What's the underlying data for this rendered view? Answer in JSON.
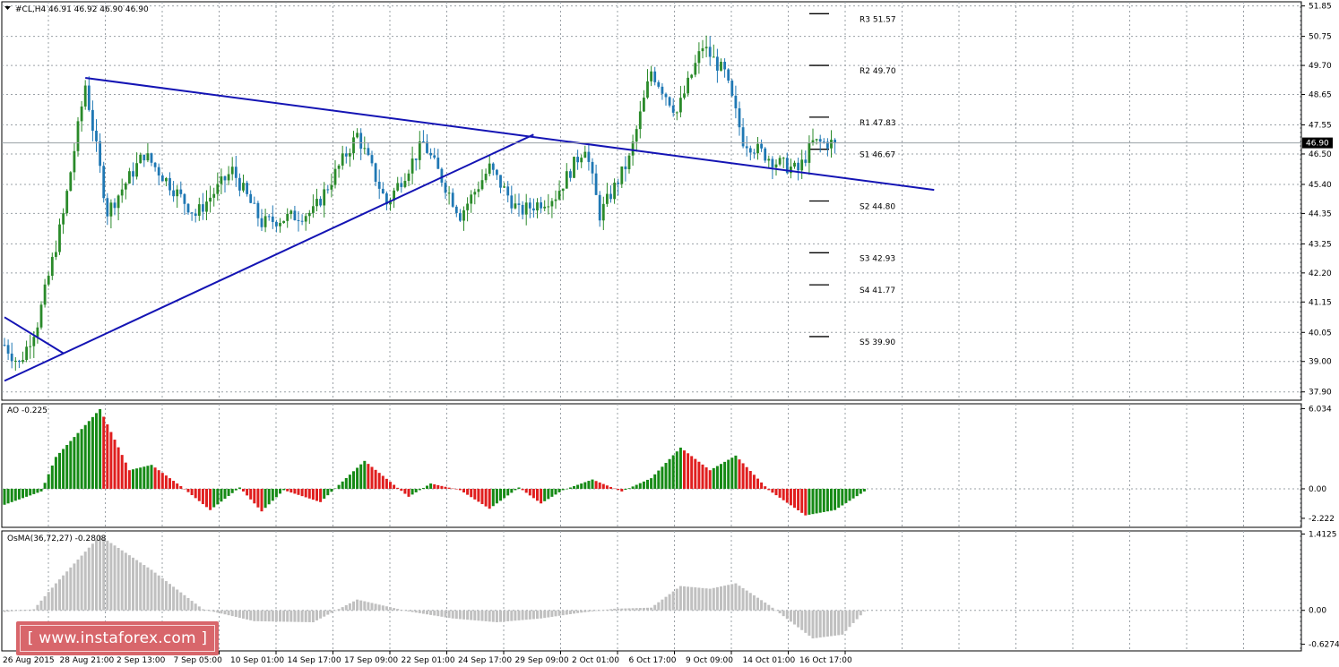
{
  "chart_data": [
    {
      "type": "candlestick",
      "title": "#CL,H4  46.91 46.92 46.90 46.90",
      "y_axis_ticks": [
        "51.85",
        "50.75",
        "49.70",
        "48.65",
        "47.55",
        "46.50",
        "45.40",
        "44.35",
        "43.25",
        "42.20",
        "41.15",
        "40.05",
        "39.00",
        "37.90"
      ],
      "ylim": [
        37.6,
        52.0
      ],
      "current_price": "46.90",
      "x_axis_labels": [
        "26 Aug 2015",
        "28 Aug 21:00",
        "2 Sep 13:00",
        "7 Sep 05:00",
        "10 Sep 01:00",
        "14 Sep 17:00",
        "17 Sep 09:00",
        "22 Sep 01:00",
        "24 Sep 17:00",
        "29 Sep 09:00",
        "2 Oct 01:00",
        "6 Oct 17:00",
        "9 Oct 09:00",
        "14 Oct 01:00",
        "16 Oct 17:00"
      ],
      "price_path_keypoints": [
        {
          "bar": 0,
          "close": 39.6
        },
        {
          "bar": 4,
          "close": 38.9
        },
        {
          "bar": 9,
          "close": 40.4
        },
        {
          "bar": 16,
          "close": 44.3
        },
        {
          "bar": 22,
          "close": 49.0
        },
        {
          "bar": 28,
          "close": 44.4
        },
        {
          "bar": 38,
          "close": 46.5
        },
        {
          "bar": 52,
          "close": 44.3
        },
        {
          "bar": 62,
          "close": 45.9
        },
        {
          "bar": 70,
          "close": 44.0
        },
        {
          "bar": 84,
          "close": 44.4
        },
        {
          "bar": 96,
          "close": 47.2
        },
        {
          "bar": 104,
          "close": 44.7
        },
        {
          "bar": 114,
          "close": 46.9
        },
        {
          "bar": 124,
          "close": 44.3
        },
        {
          "bar": 132,
          "close": 46.0
        },
        {
          "bar": 140,
          "close": 44.4
        },
        {
          "bar": 150,
          "close": 45.0
        },
        {
          "bar": 158,
          "close": 46.8
        },
        {
          "bar": 162,
          "close": 44.3
        },
        {
          "bar": 170,
          "close": 46.3
        },
        {
          "bar": 176,
          "close": 49.5
        },
        {
          "bar": 183,
          "close": 48.0
        },
        {
          "bar": 190,
          "close": 50.4
        },
        {
          "bar": 196,
          "close": 49.4
        },
        {
          "bar": 201,
          "close": 47.0
        },
        {
          "bar": 210,
          "close": 46.2
        },
        {
          "bar": 216,
          "close": 45.9
        },
        {
          "bar": 220,
          "close": 46.9
        },
        {
          "bar": 226,
          "close": 46.9
        }
      ],
      "trendlines": [
        {
          "from": {
            "bar": 22,
            "price": 49.25
          },
          "to": {
            "bar": 253,
            "price": 45.2
          }
        },
        {
          "from": {
            "bar": 0,
            "price": 38.3
          },
          "to": {
            "bar": 144,
            "price": 47.2
          }
        },
        {
          "from": {
            "bar": 0,
            "price": 40.6
          },
          "to": {
            "bar": 16,
            "price": 39.3
          }
        }
      ],
      "pivot_levels": [
        {
          "name": "R3",
          "value": 51.57,
          "label": "R3 51.57"
        },
        {
          "name": "R2",
          "value": 49.7,
          "label": "R2 49.70"
        },
        {
          "name": "R1",
          "value": 47.83,
          "label": "R1 47.83"
        },
        {
          "name": "S1",
          "value": 46.67,
          "label": "S1 46.67"
        },
        {
          "name": "S2",
          "value": 44.8,
          "label": "S2 44.80"
        },
        {
          "name": "S3",
          "value": 42.93,
          "label": "S3 42.93"
        },
        {
          "name": "S4",
          "value": 41.77,
          "label": "S4 41.77"
        },
        {
          "name": "S5",
          "value": 39.9,
          "label": "S5 39.90"
        }
      ],
      "colors": {
        "bull": "#2a8a2a",
        "bear": "#1f78b4",
        "trendline": "#1414b4",
        "grid": "#9aa0a6"
      }
    },
    {
      "type": "bar",
      "title": "AO -0.225",
      "y_axis_ticks": [
        "6.034",
        "0.00",
        "-2.222"
      ],
      "ylim": [
        -2.9,
        6.4
      ],
      "keypoints": [
        {
          "bar": 0,
          "value": -1.2
        },
        {
          "bar": 10,
          "value": -0.2
        },
        {
          "bar": 14,
          "value": 2.4
        },
        {
          "bar": 26,
          "value": 6.0
        },
        {
          "bar": 34,
          "value": 1.4
        },
        {
          "bar": 40,
          "value": 1.8
        },
        {
          "bar": 48,
          "value": 0.2
        },
        {
          "bar": 56,
          "value": -1.6
        },
        {
          "bar": 64,
          "value": 0.1
        },
        {
          "bar": 70,
          "value": -1.7
        },
        {
          "bar": 76,
          "value": -0.1
        },
        {
          "bar": 86,
          "value": -1.0
        },
        {
          "bar": 98,
          "value": 2.1
        },
        {
          "bar": 110,
          "value": -0.6
        },
        {
          "bar": 116,
          "value": 0.4
        },
        {
          "bar": 124,
          "value": -0.1
        },
        {
          "bar": 132,
          "value": -1.5
        },
        {
          "bar": 140,
          "value": 0.1
        },
        {
          "bar": 146,
          "value": -1.1
        },
        {
          "bar": 152,
          "value": -0.1
        },
        {
          "bar": 160,
          "value": 0.7
        },
        {
          "bar": 168,
          "value": -0.2
        },
        {
          "bar": 176,
          "value": 0.8
        },
        {
          "bar": 184,
          "value": 3.1
        },
        {
          "bar": 192,
          "value": 1.4
        },
        {
          "bar": 199,
          "value": 2.5
        },
        {
          "bar": 208,
          "value": -0.1
        },
        {
          "bar": 218,
          "value": -2.0
        },
        {
          "bar": 226,
          "value": -1.6
        },
        {
          "bar": 234,
          "value": -0.2
        }
      ],
      "colors": {
        "up": "#168a16",
        "down": "#e01e1e"
      }
    },
    {
      "type": "bar",
      "title": "OsMA(36,72,27) -0.2808",
      "y_axis_ticks": [
        "1.4125",
        "0.00",
        "-0.6274"
      ],
      "ylim": [
        -0.75,
        1.47
      ],
      "keypoints": [
        {
          "bar": 0,
          "value": -0.03
        },
        {
          "bar": 8,
          "value": 0.02
        },
        {
          "bar": 14,
          "value": 0.5
        },
        {
          "bar": 26,
          "value": 1.38
        },
        {
          "bar": 40,
          "value": 0.75
        },
        {
          "bar": 54,
          "value": 0.02
        },
        {
          "bar": 68,
          "value": -0.2
        },
        {
          "bar": 84,
          "value": -0.22
        },
        {
          "bar": 96,
          "value": 0.2
        },
        {
          "bar": 110,
          "value": -0.02
        },
        {
          "bar": 122,
          "value": -0.15
        },
        {
          "bar": 134,
          "value": -0.22
        },
        {
          "bar": 146,
          "value": -0.15
        },
        {
          "bar": 156,
          "value": -0.05
        },
        {
          "bar": 166,
          "value": 0.03
        },
        {
          "bar": 176,
          "value": 0.05
        },
        {
          "bar": 184,
          "value": 0.45
        },
        {
          "bar": 192,
          "value": 0.4
        },
        {
          "bar": 199,
          "value": 0.5
        },
        {
          "bar": 208,
          "value": 0.1
        },
        {
          "bar": 220,
          "value": -0.52
        },
        {
          "bar": 228,
          "value": -0.45
        },
        {
          "bar": 234,
          "value": -0.02
        }
      ],
      "colors": {
        "bar": "#c0c0c0"
      }
    }
  ],
  "watermark": "[ www.instaforex.com ]"
}
